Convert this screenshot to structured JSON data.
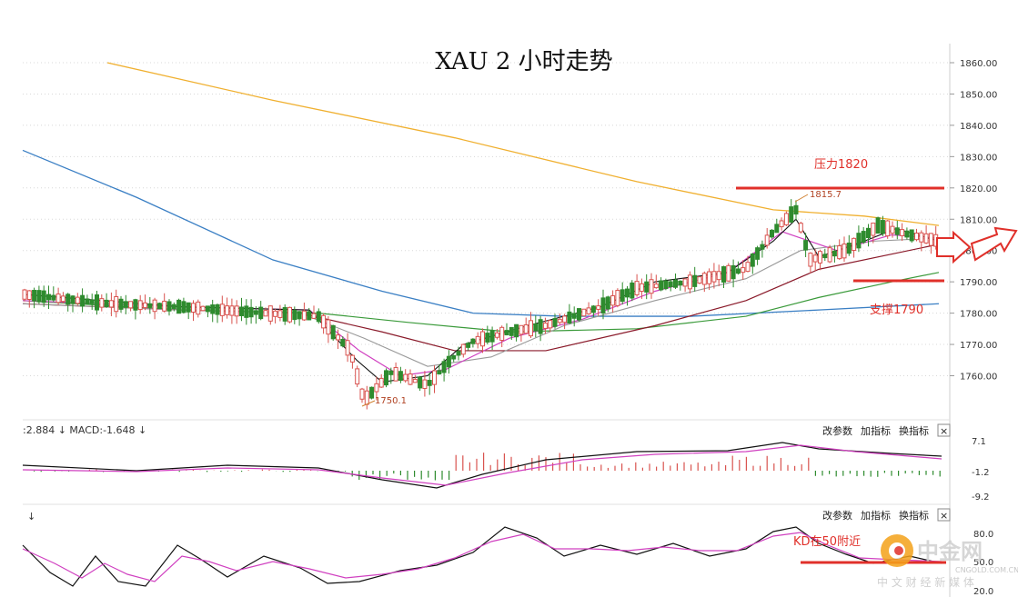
{
  "chart_data": [
    {
      "type": "candlestick",
      "title": "XAU 2 小时走势",
      "ylim": [
        1750,
        1865
      ],
      "y_ticks": [
        "1860.00",
        "1850.00",
        "1840.00",
        "1830.00",
        "1820.00",
        "1810.00",
        "1800.00",
        "1790.00",
        "1780.00",
        "1770.00",
        "1760.00"
      ],
      "annotations": {
        "resistance": {
          "label": "压力1820",
          "value": 1820
        },
        "support": {
          "label": "支撑1790",
          "value": 1790
        },
        "high": {
          "label": "1815.7",
          "value": 1815.7
        },
        "low": {
          "label": "1750.1",
          "value": 1750.1
        }
      },
      "colors": {
        "up": "#d9534f",
        "down": "#2e8b2e",
        "ma_slow": "#f0b030",
        "ma_blue": "#3a7fc4",
        "ma_green": "#3a9a3a",
        "ma_dark": "#8a1a2a",
        "ma_magenta": "#d040c0",
        "ma_gray": "#999999",
        "ma_black": "#111111",
        "guide": "#e0302a"
      }
    },
    {
      "type": "line",
      "name": "MACD",
      "header": ":2.884 ↓  MACD:-1.648 ↓",
      "y_ticks": [
        "7.1",
        "-1.2",
        "-9.2"
      ]
    },
    {
      "type": "line",
      "name": "KD",
      "y_ticks": [
        "80.0",
        "50.0",
        "20.0"
      ],
      "annotation": "KD在50附近"
    }
  ],
  "toolbar": {
    "params": "改参数",
    "add": "加指标",
    "swap": "换指标",
    "close": "×"
  },
  "watermark": {
    "name": "中金网",
    "url": "CNGOLD.COM.CN",
    "slogan": "中 文 财 经 新 媒 体"
  }
}
